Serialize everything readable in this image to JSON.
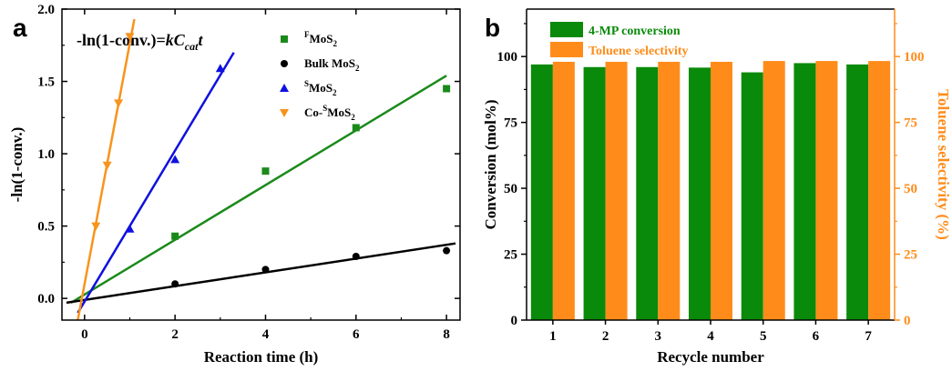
{
  "chart_data": [
    {
      "type": "scatter",
      "panel_label": "a",
      "equation": {
        "prefix": "-ln(1-conv.)=",
        "k": "k",
        "C": "C",
        "sub": "cat",
        "t": "t"
      },
      "xlabel": "Reaction time (h)",
      "ylabel": "-ln(1-conv.)",
      "xlim": [
        -0.5,
        8.3
      ],
      "ylim": [
        -0.15,
        2.0
      ],
      "xticks": [
        0,
        2,
        4,
        6,
        8
      ],
      "yticks": [
        0.0,
        0.5,
        1.0,
        1.5,
        2.0
      ],
      "ytick_labels": [
        "0.0",
        "0.5",
        "1.0",
        "1.5",
        "2.0"
      ],
      "legend_position": "top-right",
      "series": [
        {
          "name_main": "MoS",
          "name_pre": "",
          "name_sup": "F",
          "name_sub": "2",
          "color": "#1a8a1a",
          "marker": "square",
          "x": [
            2,
            4,
            6,
            8
          ],
          "y": [
            0.43,
            0.88,
            1.18,
            1.45
          ],
          "fit": [
            [
              -0.3,
              -0.03
            ],
            [
              8.0,
              1.54
            ]
          ]
        },
        {
          "name_main": "Bulk MoS",
          "name_pre": "",
          "name_sup": "",
          "name_sub": "2",
          "color": "#000000",
          "marker": "circle",
          "x": [
            2,
            4,
            6,
            8
          ],
          "y": [
            0.1,
            0.2,
            0.29,
            0.33
          ],
          "fit": [
            [
              -0.4,
              -0.03
            ],
            [
              8.2,
              0.38
            ]
          ]
        },
        {
          "name_main": "MoS",
          "name_pre": "",
          "name_sup": "S",
          "name_sub": "2",
          "color": "#1010e0",
          "marker": "triangle-up",
          "x": [
            1,
            2,
            3
          ],
          "y": [
            0.48,
            0.96,
            1.59
          ],
          "fit": [
            [
              -0.15,
              -0.1
            ],
            [
              3.3,
              1.7
            ]
          ]
        },
        {
          "name_main": "MoS",
          "name_pre": "Co-",
          "name_sup": "S",
          "name_sub": "2",
          "color": "#f7941d",
          "marker": "triangle-down",
          "x": [
            0.25,
            0.5,
            0.75,
            1.0
          ],
          "y": [
            0.5,
            0.92,
            1.35,
            1.81
          ],
          "fit": [
            [
              -0.15,
              -0.15
            ],
            [
              1.1,
              1.93
            ]
          ]
        }
      ]
    },
    {
      "type": "bar",
      "panel_label": "b",
      "categories": [
        "1",
        "2",
        "3",
        "4",
        "5",
        "6",
        "7"
      ],
      "xlabel": "Recycle number",
      "ylabel": "Conversion (mol%)",
      "y2label": "Toluene selectivity (%)",
      "ylim": [
        0,
        118
      ],
      "y2lim": [
        0,
        118
      ],
      "yticks": [
        0,
        25,
        50,
        75,
        100
      ],
      "legend_position": "top-left",
      "series": [
        {
          "name": "4-MP conversion",
          "axis": "left",
          "color": "#0a8a0a",
          "values": [
            97,
            96,
            96,
            95.8,
            94,
            97.5,
            97
          ]
        },
        {
          "name": "Toluene selectivity",
          "axis": "right",
          "color": "#ff8c1a",
          "values": [
            98,
            98,
            98,
            98,
            98.3,
            98.3,
            98.3
          ]
        }
      ]
    }
  ]
}
